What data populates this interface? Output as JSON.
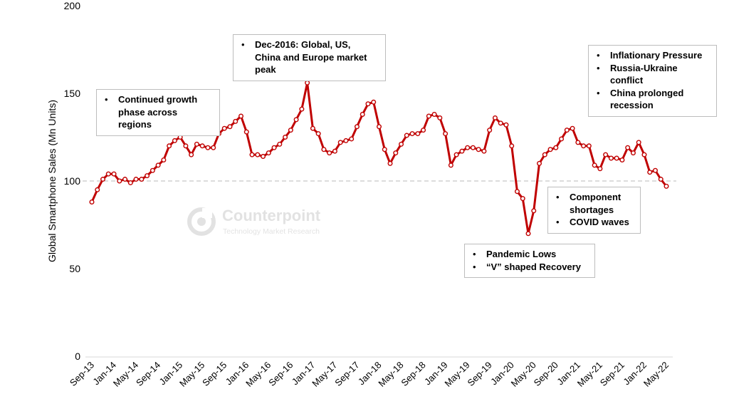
{
  "chart_data": {
    "type": "line",
    "ylabel": "Global Smartphone Sales (Mn Units)",
    "xlabel": "",
    "ylim": [
      0,
      200
    ],
    "yticks": [
      "0",
      "50",
      "100",
      "150",
      "200"
    ],
    "reference_line": 100,
    "x_tick_labels": [
      "Sep-13",
      "Jan-14",
      "May-14",
      "Sep-14",
      "Jan-15",
      "May-15",
      "Sep-15",
      "Jan-16",
      "May-16",
      "Sep-16",
      "Jan-17",
      "May-17",
      "Sep-17",
      "Jan-18",
      "May-18",
      "Sep-18",
      "Jan-19",
      "May-19",
      "Sep-19",
      "Jan-20",
      "May-20",
      "Sep-20",
      "Jan-21",
      "May-21",
      "Sep-21",
      "Jan-22",
      "May-22"
    ],
    "series": [
      {
        "name": "Global Smartphone Sales",
        "color": "#c00000",
        "values": [
          88,
          95,
          101,
          104,
          104,
          100,
          101,
          99,
          101,
          101,
          103,
          106,
          109,
          112,
          120,
          123,
          125,
          120,
          115,
          121,
          120,
          119,
          119,
          127,
          130,
          131,
          134,
          137,
          128,
          115,
          115,
          114,
          116,
          119,
          121,
          125,
          129,
          135,
          141,
          156,
          130,
          127,
          118,
          116,
          117,
          122,
          123,
          124,
          131,
          138,
          144,
          145,
          131,
          118,
          110,
          116,
          121,
          126,
          127,
          127,
          129,
          137,
          138,
          136,
          127,
          109,
          115,
          117,
          119,
          119,
          118,
          117,
          129,
          136,
          133,
          132,
          120,
          94,
          90,
          70,
          83,
          110,
          115,
          118,
          119,
          124,
          129,
          130,
          122,
          120,
          120,
          109,
          107,
          115,
          113,
          113,
          112,
          119,
          116,
          122,
          115,
          105,
          106,
          101,
          97
        ]
      }
    ]
  },
  "annotations": {
    "growth": [
      "Continued growth phase across regions"
    ],
    "peak": [
      "Dec-2016: Global, US, China and Europe market peak"
    ],
    "inflation": [
      "Inflationary Pressure",
      "Russia-Ukraine conflict",
      "China prolonged recession"
    ],
    "shortage": [
      "Component shortages",
      "COVID waves"
    ],
    "pandemic": [
      "Pandemic Lows",
      "“V” shaped Recovery"
    ]
  },
  "watermark": {
    "name": "Counterpoint",
    "subtitle": "Technology Market Research"
  }
}
